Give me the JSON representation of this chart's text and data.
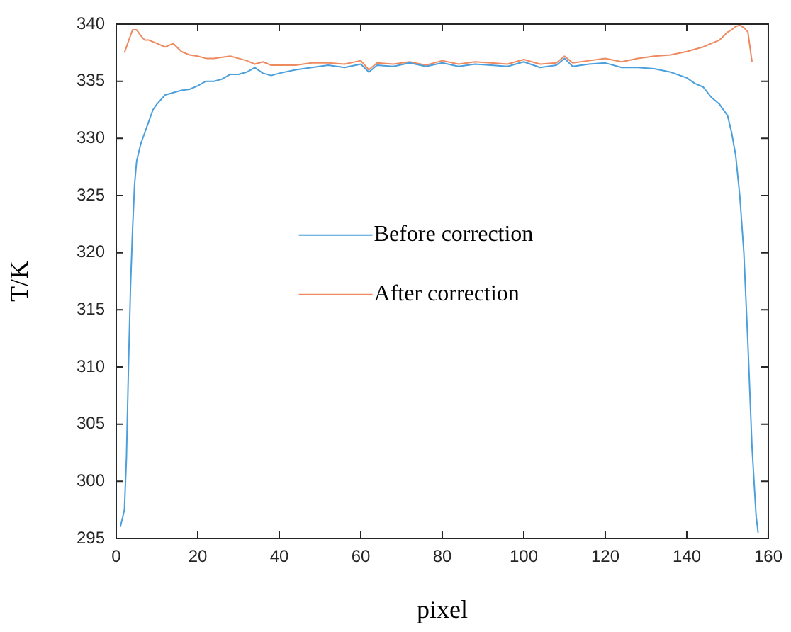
{
  "chart_data": {
    "type": "line",
    "xlabel": "pixel",
    "ylabel": "T/K",
    "xlim": [
      0,
      160
    ],
    "xticks": [
      0,
      20,
      40,
      60,
      80,
      100,
      120,
      140,
      160
    ],
    "ylim": [
      295,
      340
    ],
    "yticks": [
      295,
      300,
      305,
      310,
      315,
      320,
      325,
      330,
      335,
      340
    ],
    "grid": false,
    "legend": "center",
    "marker": "none",
    "line_style": "solid",
    "series": [
      {
        "name": "Before correction",
        "color": "#4a9fdc",
        "x": [
          1,
          2,
          2.5,
          3,
          3.5,
          4,
          4.5,
          5,
          6,
          7,
          8,
          9,
          10,
          12,
          14,
          16,
          18,
          20,
          22,
          24,
          26,
          28,
          30,
          32,
          34,
          36,
          38,
          40,
          44,
          48,
          52,
          56,
          60,
          62,
          64,
          68,
          72,
          76,
          80,
          84,
          88,
          92,
          96,
          100,
          104,
          108,
          110,
          112,
          116,
          120,
          124,
          128,
          132,
          136,
          140,
          142,
          144,
          146,
          148,
          150,
          151,
          152,
          153,
          154,
          155,
          156,
          157,
          157.5
        ],
        "values": [
          296,
          297.5,
          302,
          310,
          317,
          322,
          326,
          328,
          329.5,
          330.5,
          331.5,
          332.5,
          333,
          333.8,
          334,
          334.2,
          334.3,
          334.6,
          335,
          335,
          335.2,
          335.6,
          335.6,
          335.8,
          336.2,
          335.7,
          335.5,
          335.7,
          336,
          336.2,
          336.4,
          336.2,
          336.5,
          335.8,
          336.4,
          336.3,
          336.6,
          336.3,
          336.6,
          336.3,
          336.5,
          336.4,
          336.3,
          336.7,
          336.2,
          336.4,
          337,
          336.3,
          336.5,
          336.6,
          336.2,
          336.2,
          336.1,
          335.8,
          335.3,
          334.8,
          334.5,
          333.6,
          333,
          332,
          330.5,
          328.5,
          325,
          320,
          312,
          303,
          297,
          295.5
        ]
      },
      {
        "name": "After correction",
        "color": "#ee8a60",
        "x": [
          2,
          3,
          4,
          5,
          6,
          7,
          8,
          10,
          12,
          14,
          16,
          18,
          20,
          22,
          24,
          26,
          28,
          30,
          32,
          34,
          36,
          38,
          40,
          44,
          48,
          52,
          56,
          60,
          62,
          64,
          68,
          72,
          76,
          80,
          84,
          88,
          92,
          96,
          100,
          104,
          108,
          110,
          112,
          116,
          120,
          124,
          128,
          132,
          136,
          140,
          142,
          144,
          146,
          148,
          150,
          151,
          152,
          153,
          154,
          155,
          156
        ],
        "values": [
          337.5,
          338.5,
          339.5,
          339.5,
          339,
          338.6,
          338.6,
          338.3,
          338,
          338.3,
          337.6,
          337.3,
          337.2,
          337,
          337,
          337.1,
          337.2,
          337,
          336.8,
          336.5,
          336.7,
          336.4,
          336.4,
          336.4,
          336.6,
          336.6,
          336.5,
          336.8,
          336,
          336.6,
          336.5,
          336.7,
          336.4,
          336.8,
          336.5,
          336.7,
          336.6,
          336.5,
          336.9,
          336.5,
          336.6,
          337.2,
          336.6,
          336.8,
          337,
          336.7,
          337,
          337.2,
          337.3,
          337.6,
          337.8,
          338,
          338.3,
          338.6,
          339.3,
          339.5,
          339.8,
          339.9,
          339.7,
          339.3,
          336.7
        ]
      }
    ]
  }
}
